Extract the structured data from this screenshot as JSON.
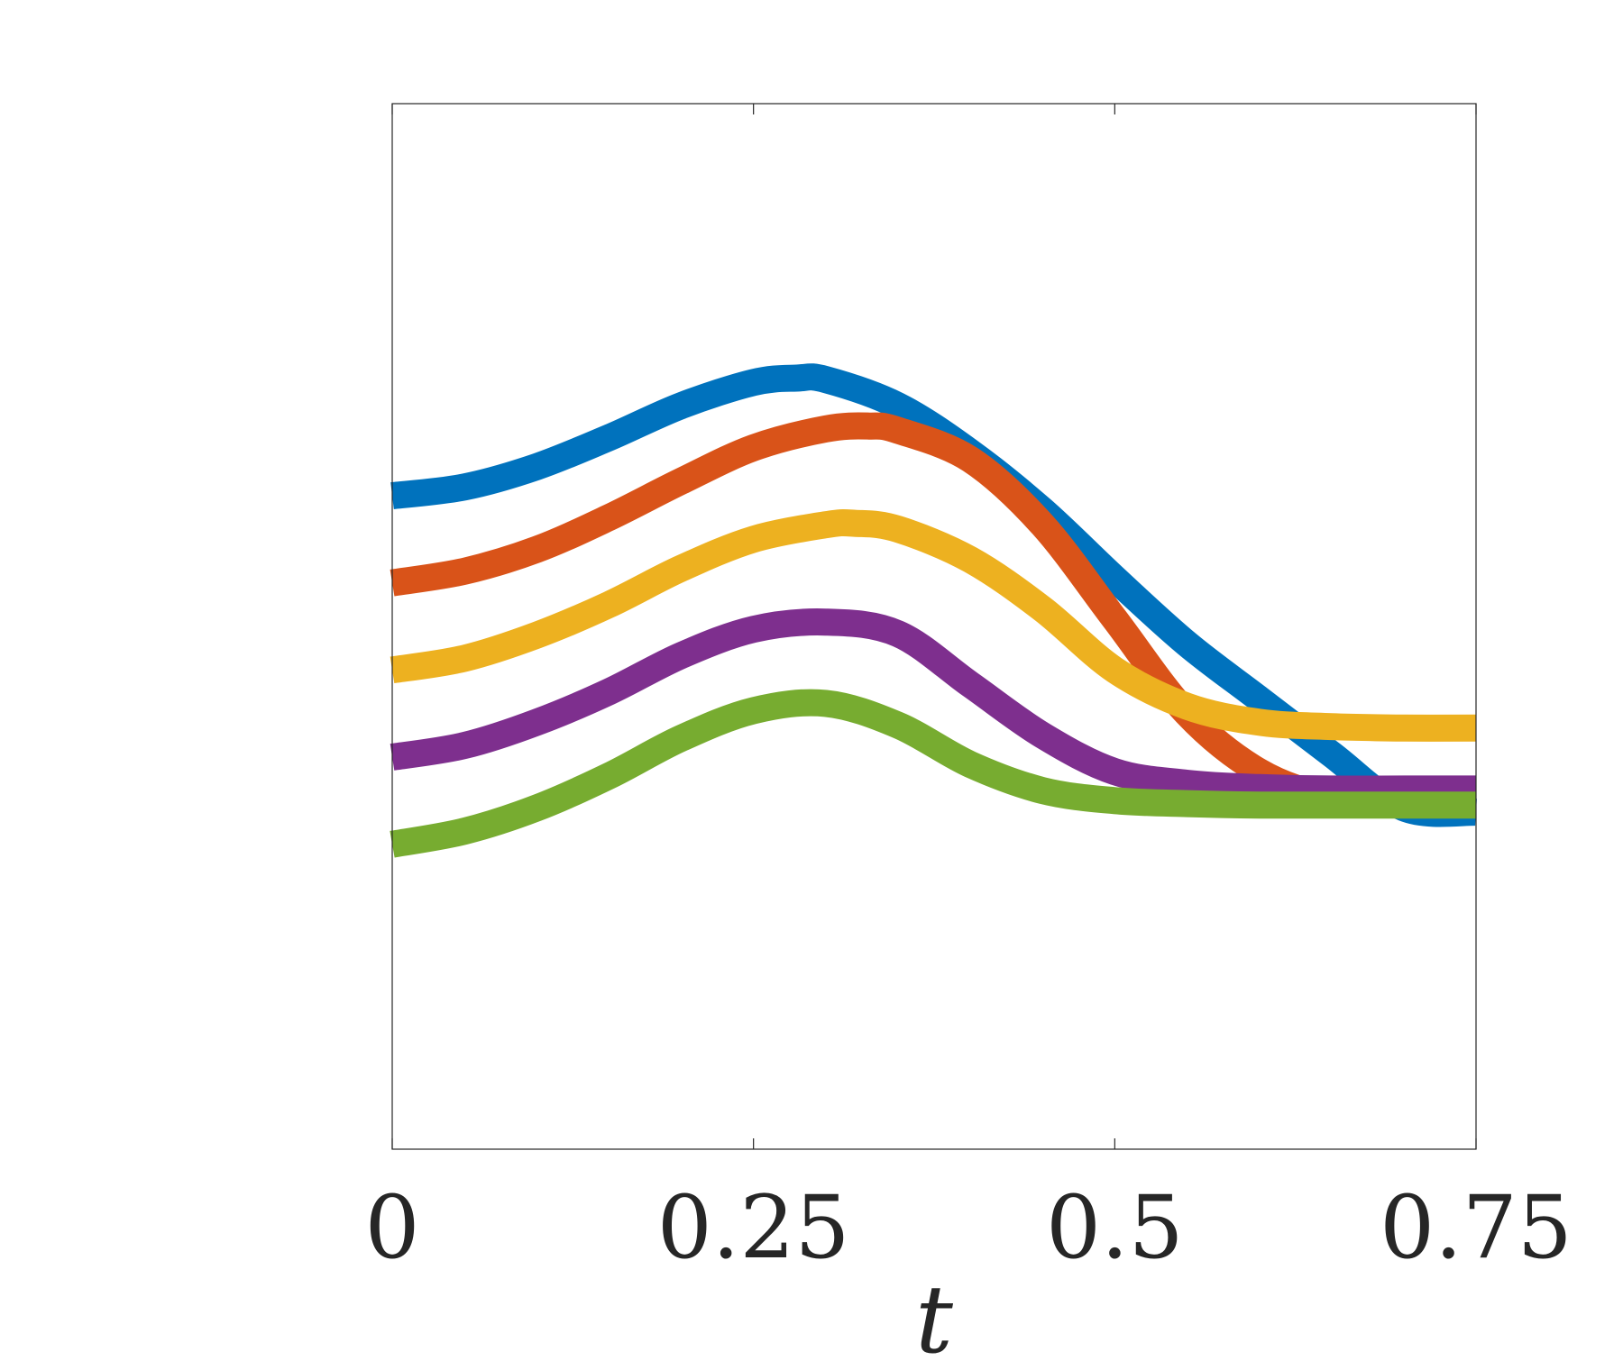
{
  "chart_data": {
    "type": "line",
    "xlabel": "t",
    "ylabel": "",
    "title": "",
    "xlim": [
      0,
      0.75
    ],
    "ylim": [
      -3.6,
      3.6
    ],
    "xticks": [
      {
        "value": 0,
        "label": "0"
      },
      {
        "value": 0.25,
        "label": "0.25"
      },
      {
        "value": 0.5,
        "label": "0.5"
      },
      {
        "value": 0.75,
        "label": "0.75"
      }
    ],
    "grid": false,
    "legend": "none",
    "series": [
      {
        "color": "#0072BD",
        "x": [
          0,
          0.05,
          0.1,
          0.15,
          0.2,
          0.25,
          0.28,
          0.3,
          0.35,
          0.4,
          0.45,
          0.5,
          0.55,
          0.6,
          0.65,
          0.7,
          0.75
        ],
        "y": [
          0.9,
          0.96,
          1.1,
          1.3,
          1.52,
          1.68,
          1.71,
          1.7,
          1.52,
          1.2,
          0.8,
          0.33,
          -0.12,
          -0.5,
          -0.88,
          -1.25,
          -1.28
        ]
      },
      {
        "color": "#D95319",
        "x": [
          0,
          0.05,
          0.1,
          0.15,
          0.2,
          0.25,
          0.3,
          0.33,
          0.35,
          0.4,
          0.45,
          0.5,
          0.55,
          0.6,
          0.65,
          0.7,
          0.75
        ],
        "y": [
          0.3,
          0.38,
          0.53,
          0.75,
          1.0,
          1.23,
          1.36,
          1.38,
          1.35,
          1.15,
          0.7,
          0.05,
          -0.6,
          -1.0,
          -1.18,
          -1.22,
          -1.22
        ]
      },
      {
        "color": "#EDB120",
        "x": [
          0,
          0.05,
          0.1,
          0.15,
          0.2,
          0.25,
          0.3,
          0.32,
          0.35,
          0.4,
          0.45,
          0.5,
          0.55,
          0.6,
          0.65,
          0.7,
          0.75
        ],
        "y": [
          -0.3,
          -0.22,
          -0.06,
          0.15,
          0.4,
          0.6,
          0.7,
          0.71,
          0.67,
          0.46,
          0.12,
          -0.3,
          -0.55,
          -0.66,
          -0.69,
          -0.7,
          -0.7
        ]
      },
      {
        "color": "#7E2F8E",
        "x": [
          0,
          0.05,
          0.1,
          0.15,
          0.2,
          0.25,
          0.3,
          0.35,
          0.4,
          0.45,
          0.5,
          0.55,
          0.6,
          0.65,
          0.7,
          0.75
        ],
        "y": [
          -0.9,
          -0.82,
          -0.66,
          -0.45,
          -0.2,
          -0.02,
          0.03,
          -0.05,
          -0.4,
          -0.75,
          -1.0,
          -1.08,
          -1.11,
          -1.12,
          -1.12,
          -1.12
        ]
      },
      {
        "color": "#77AC30",
        "x": [
          0,
          0.05,
          0.1,
          0.15,
          0.2,
          0.25,
          0.3,
          0.35,
          0.4,
          0.45,
          0.5,
          0.55,
          0.6,
          0.65,
          0.7,
          0.75
        ],
        "y": [
          -1.5,
          -1.41,
          -1.25,
          -1.03,
          -0.77,
          -0.58,
          -0.53,
          -0.68,
          -0.95,
          -1.13,
          -1.2,
          -1.22,
          -1.23,
          -1.23,
          -1.23,
          -1.23
        ]
      }
    ]
  }
}
